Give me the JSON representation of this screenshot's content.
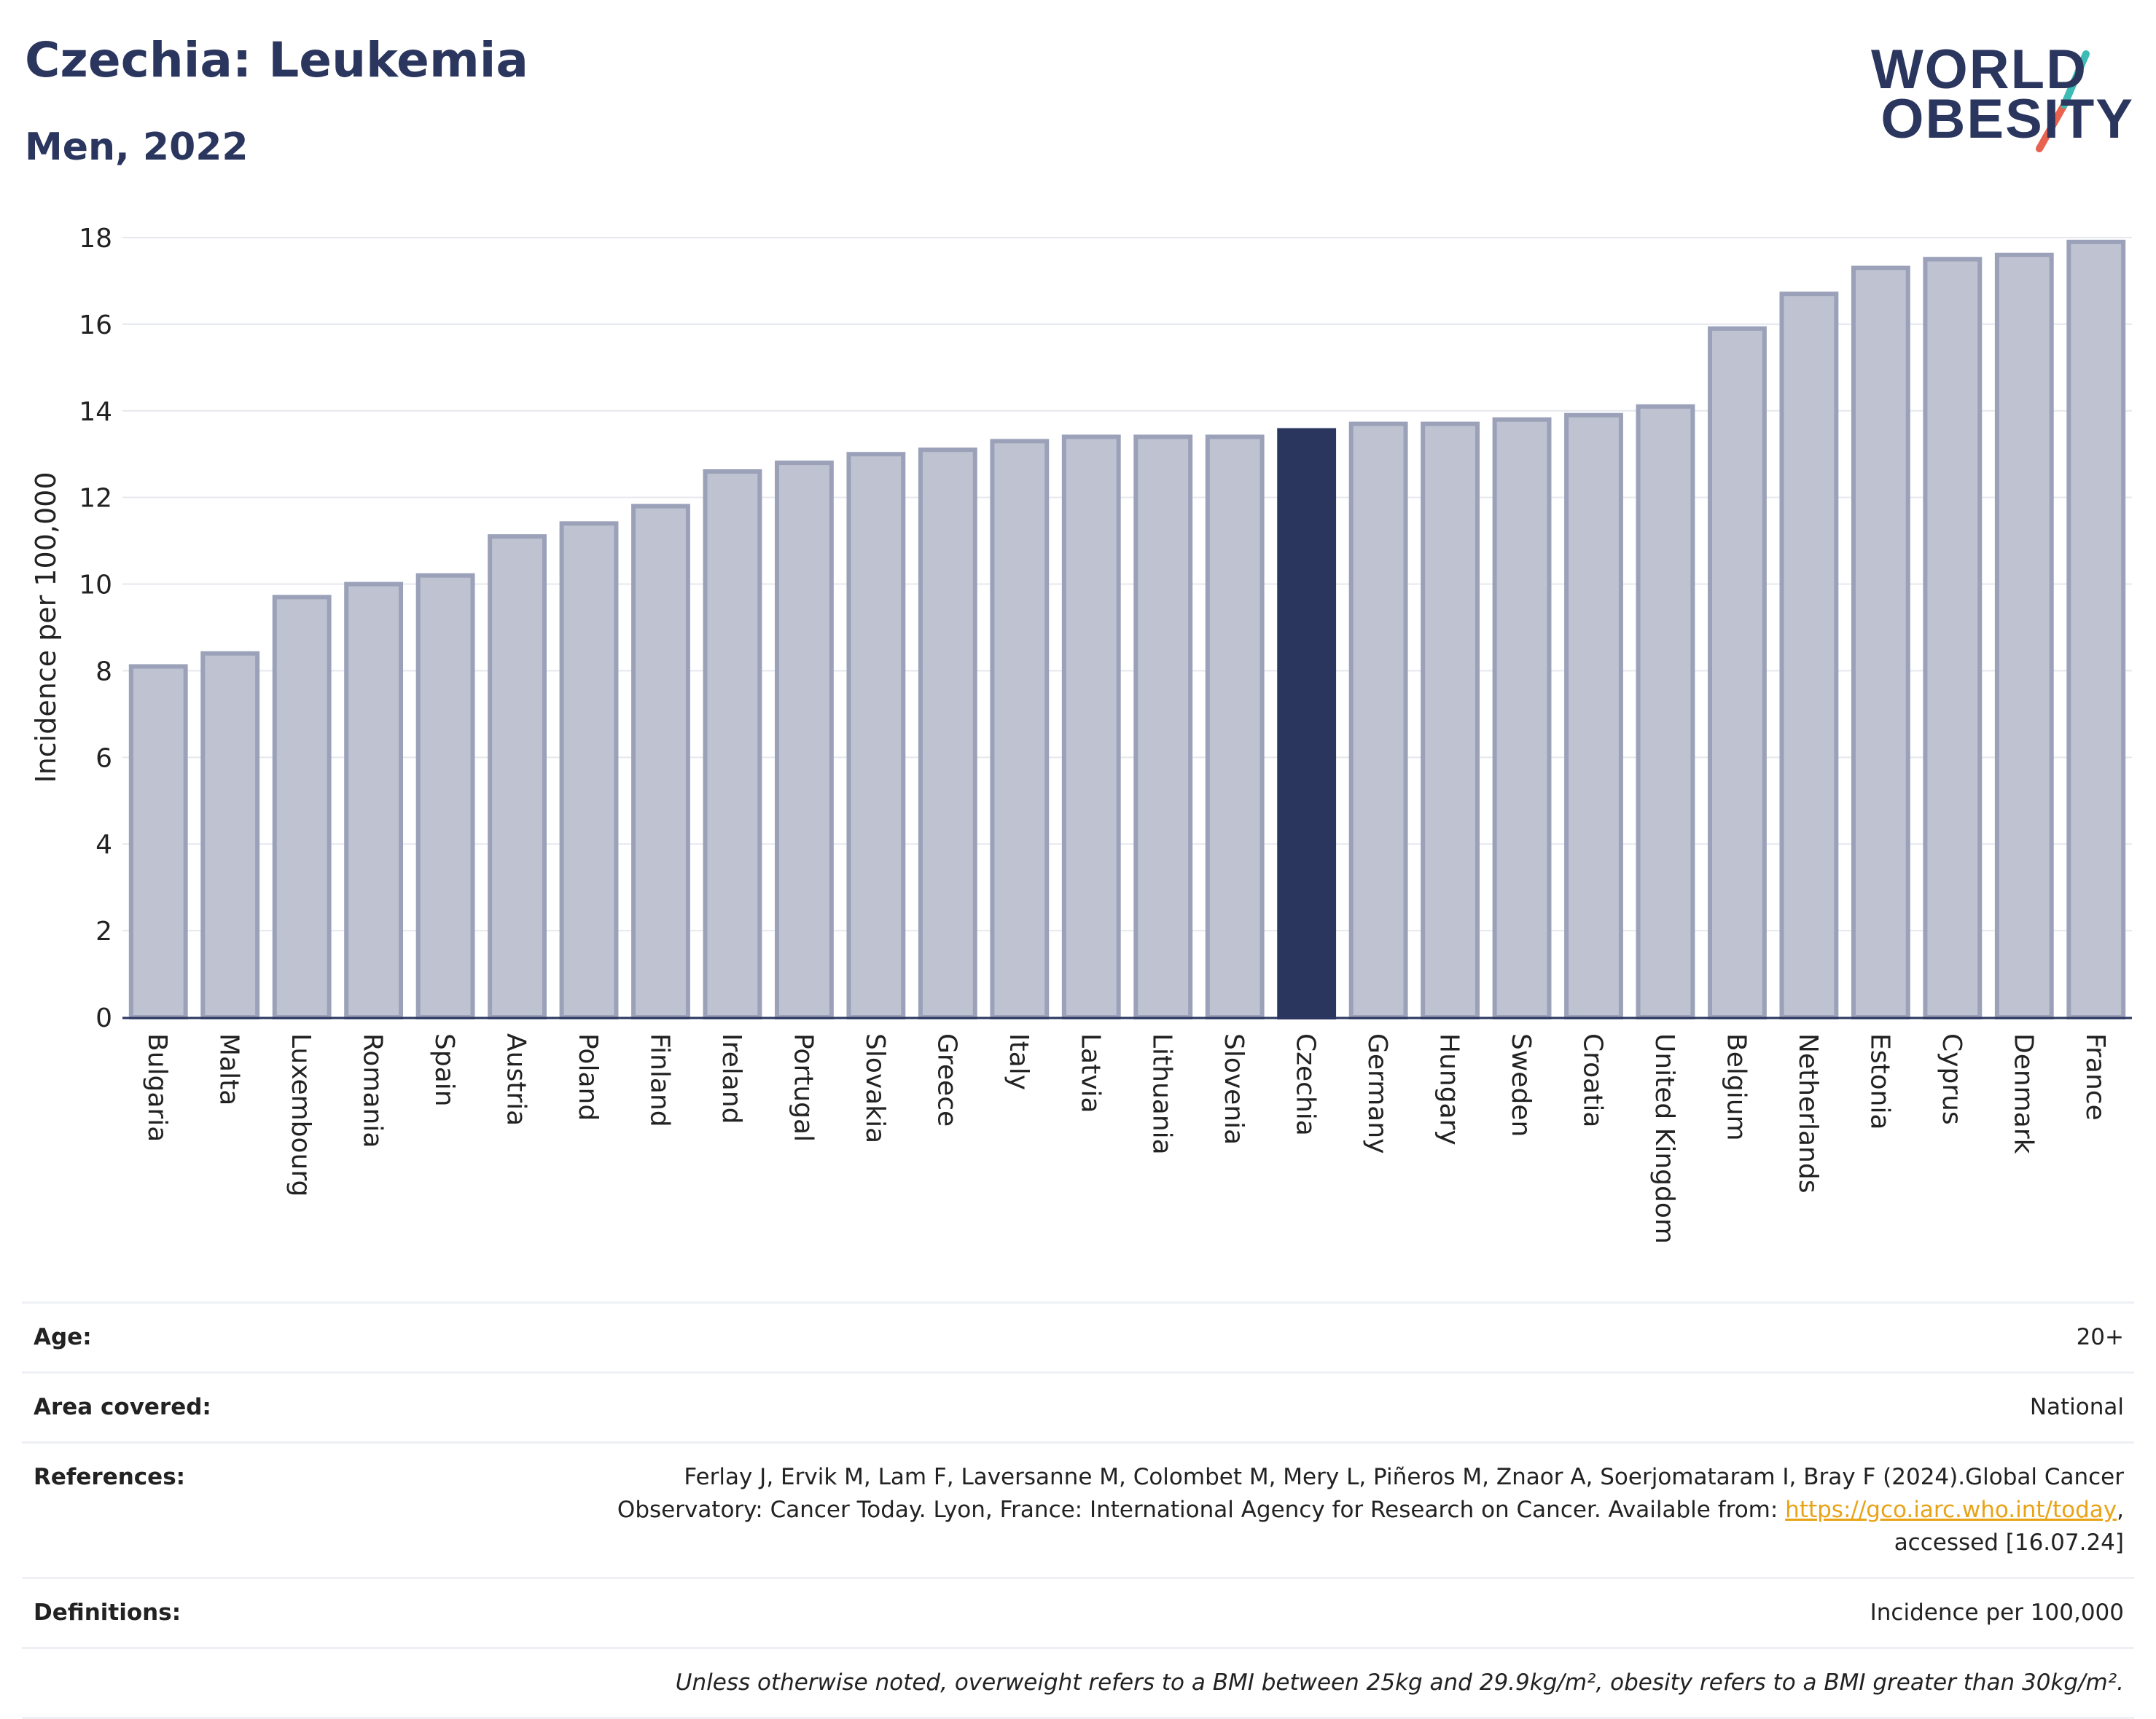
{
  "header": {
    "title": "Czechia: Leukemia",
    "subtitle": "Men, 2022",
    "logo_line1": "WORLD",
    "logo_line2": "OBESITY"
  },
  "colors": {
    "highlight": "#2b365f",
    "bar_fill": "#bfc3d1",
    "bar_stroke": "#9aa1b8",
    "logo_teal": "#3cbcb4",
    "logo_red": "#e8634f"
  },
  "chart_data": {
    "type": "bar",
    "title": "Czechia: Leukemia",
    "subtitle": "Men, 2022",
    "ylabel": "Incidence per 100,000",
    "ylim": [
      0,
      18
    ],
    "yticks": [
      0,
      2,
      4,
      6,
      8,
      10,
      12,
      14,
      16,
      18
    ],
    "grid": true,
    "highlight": "Czechia",
    "categories": [
      "Bulgaria",
      "Malta",
      "Luxembourg",
      "Romania",
      "Spain",
      "Austria",
      "Poland",
      "Finland",
      "Ireland",
      "Portugal",
      "Slovakia",
      "Greece",
      "Italy",
      "Latvia",
      "Lithuania",
      "Slovenia",
      "Czechia",
      "Germany",
      "Hungary",
      "Sweden",
      "Croatia",
      "United Kingdom",
      "Belgium",
      "Netherlands",
      "Estonia",
      "Cyprus",
      "Denmark",
      "France"
    ],
    "values": [
      8.1,
      8.4,
      9.7,
      10.0,
      10.2,
      11.1,
      11.4,
      11.8,
      12.6,
      12.8,
      13.0,
      13.1,
      13.3,
      13.4,
      13.4,
      13.4,
      13.55,
      13.7,
      13.7,
      13.8,
      13.9,
      14.1,
      15.9,
      16.7,
      17.3,
      17.5,
      17.6,
      17.9
    ]
  },
  "meta": {
    "age_label": "Age:",
    "age_value": "20+",
    "area_label": "Area covered:",
    "area_value": "National",
    "references_label": "References:",
    "references_text1": "Ferlay J, Ervik M, Lam F, Laversanne M, Colombet M, Mery L, Piñeros M, Znaor A, Soerjomataram I, Bray F (2024).Global Cancer",
    "references_text2": "Observatory: Cancer Today. Lyon, France: International Agency for Research on Cancer. Available from: ",
    "references_link": "https://gco.iarc.who.int/today",
    "references_text3": ",",
    "references_text4": "accessed [16.07.24]",
    "definitions_label": "Definitions:",
    "definitions_value": "Incidence per 100,000",
    "note": "Unless otherwise noted, overweight refers to a BMI between 25kg and 29.9kg/m², obesity refers to a BMI greater than 30kg/m²."
  }
}
